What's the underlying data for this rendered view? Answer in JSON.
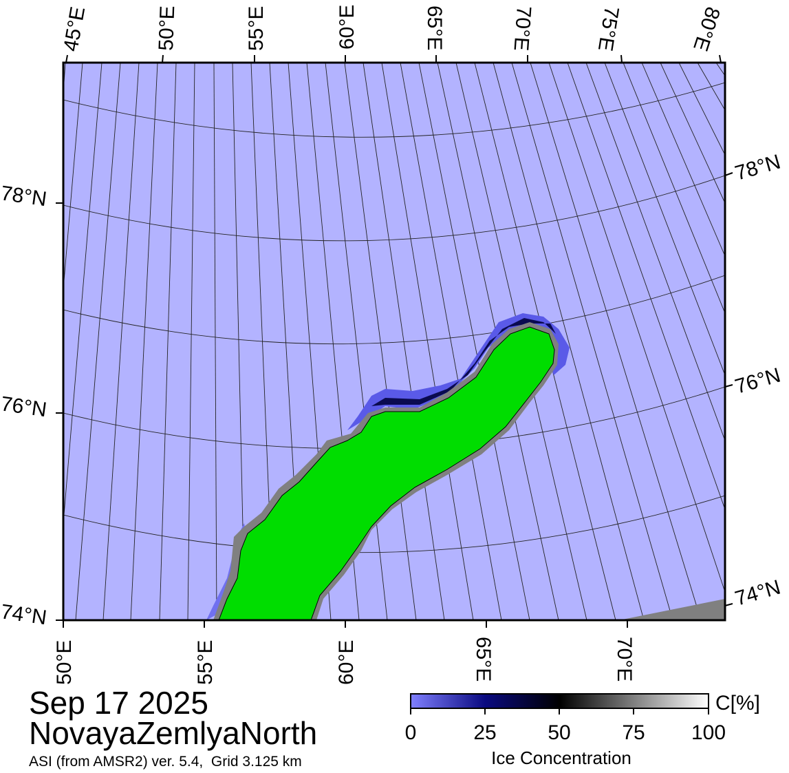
{
  "date": "Sep 17 2025",
  "region": "NovayaZemlyaNorth",
  "product": "ASI (from AMSR2) ver. 5.4,  Grid 3.125 km",
  "top_lon_labels": [
    "45°E",
    "50°E",
    "55°E",
    "60°E",
    "65°E",
    "70°E",
    "75°E",
    "80°E"
  ],
  "bottom_lon_labels": [
    "50°E",
    "55°E",
    "60°E",
    "65°E",
    "70°E"
  ],
  "left_lat_labels": [
    "78°N",
    "76°N",
    "74°N"
  ],
  "right_lat_labels": [
    "78°N",
    "76°N",
    "74°N"
  ],
  "colorbar": {
    "unit": "C[%]",
    "title": "Ice Concentration",
    "ticks": [
      "0",
      "25",
      "50",
      "75",
      "100"
    ]
  },
  "colors": {
    "ocean": "#b3b3ff",
    "land": "#00dd00",
    "coast_mask": "#808080",
    "ice_low": "#6b6bff",
    "ice_mid": "#00006b",
    "ice_high": "#000000"
  }
}
